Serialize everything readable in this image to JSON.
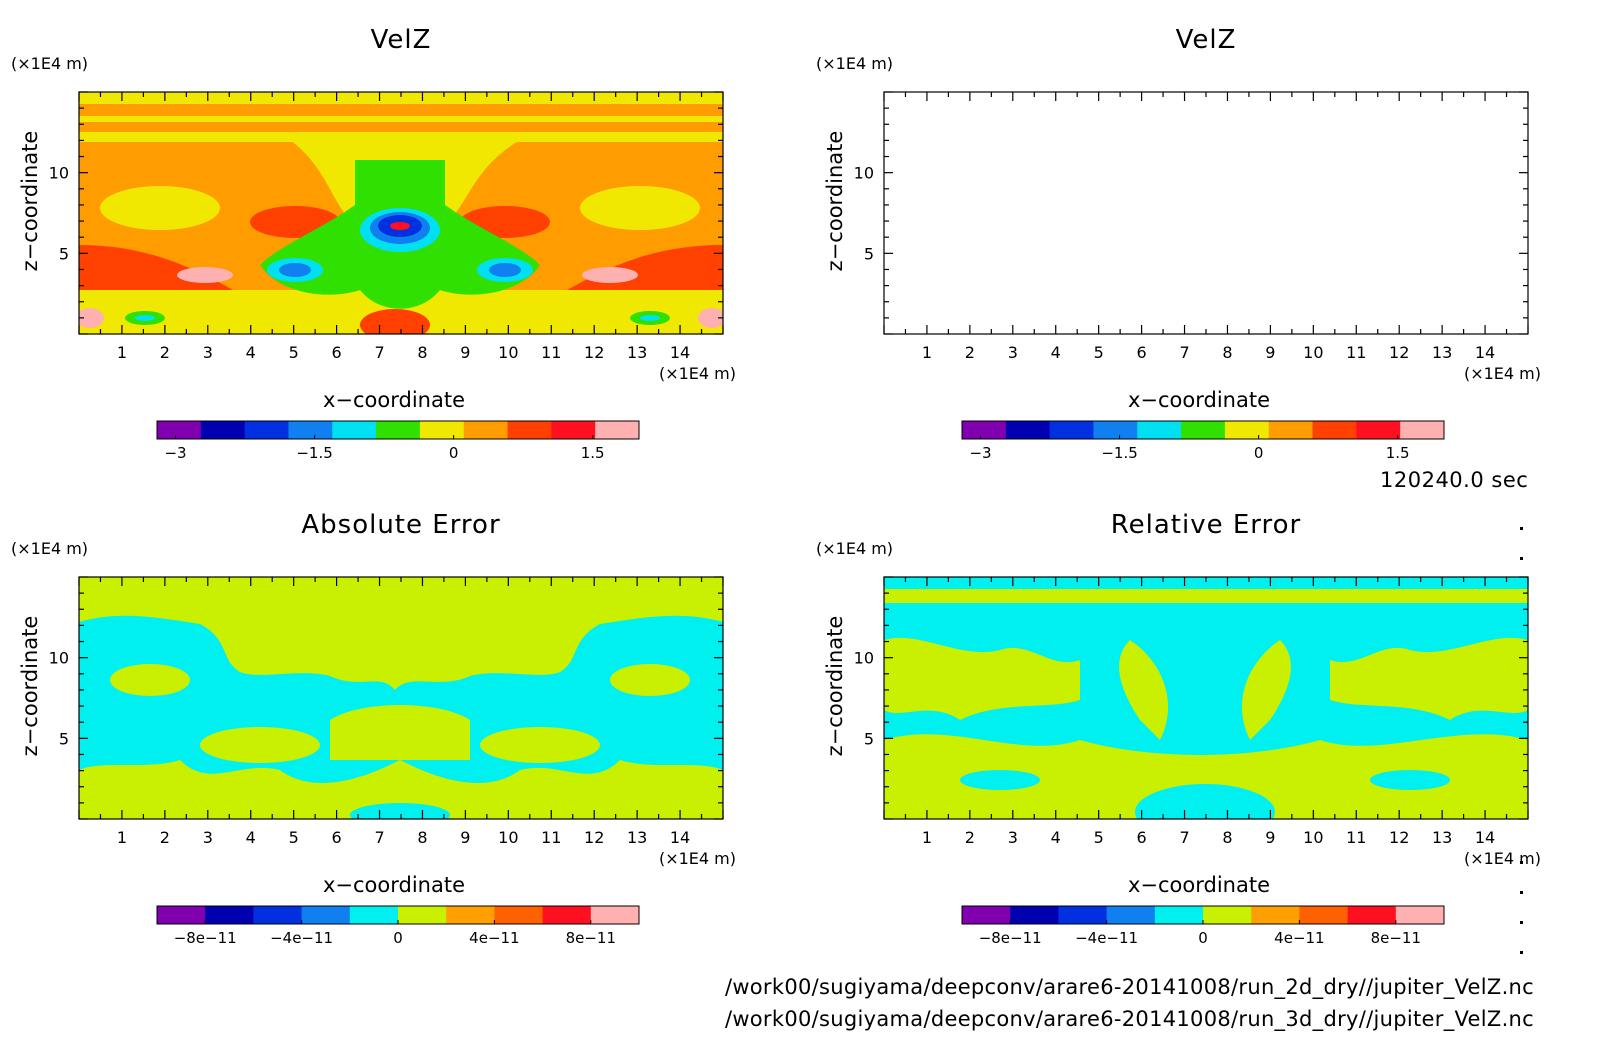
{
  "timestamp": "120240.0 sec",
  "footer": {
    "line1": "/work00/sugiyama/deepconv/arare6-20141008/run_2d_dry//jupiter_VelZ.nc",
    "line2": "/work00/sugiyama/deepconv/arare6-20141008/run_3d_dry//jupiter_VelZ.nc"
  },
  "chart_data": [
    {
      "type": "heatmap",
      "title": "VelZ",
      "xlabel": "x−coordinate",
      "ylabel": "z−coordinate",
      "x_unit": "(×1E4 m)",
      "y_unit": "(×1E4 m)",
      "xlim": [
        0,
        15
      ],
      "ylim": [
        0,
        15
      ],
      "x_ticks": [
        1,
        2,
        3,
        4,
        5,
        6,
        7,
        8,
        9,
        10,
        11,
        12,
        13,
        14
      ],
      "y_ticks": [
        5,
        10
      ],
      "colorbar": {
        "colors": [
          "#8000b0",
          "#0000b0",
          "#0030e0",
          "#1080f0",
          "#00e0f0",
          "#30e000",
          "#f0e800",
          "#ff9c00",
          "#ff4000",
          "#ff1020",
          "#ffb0b0"
        ],
        "tick_values": [
          -3,
          -1.5,
          0,
          1.5
        ],
        "tick_labels": [
          "−3",
          "−1.5",
          "0",
          "1.5"
        ],
        "range": [
          -3.2,
          2.0
        ]
      }
    },
    {
      "type": "heatmap",
      "title": "VelZ",
      "xlabel": "x−coordinate",
      "ylabel": "z−coordinate",
      "x_unit": "(×1E4 m)",
      "y_unit": "(×1E4 m)",
      "xlim": [
        0,
        15
      ],
      "ylim": [
        0,
        15
      ],
      "x_ticks": [
        1,
        2,
        3,
        4,
        5,
        6,
        7,
        8,
        9,
        10,
        11,
        12,
        13,
        14
      ],
      "y_ticks": [
        5,
        10
      ],
      "colorbar": {
        "colors": [
          "#8000b0",
          "#0000b0",
          "#0030e0",
          "#1080f0",
          "#00e0f0",
          "#30e000",
          "#f0e800",
          "#ff9c00",
          "#ff4000",
          "#ff1020",
          "#ffb0b0"
        ],
        "tick_values": [
          -3,
          -1.5,
          0,
          1.5
        ],
        "tick_labels": [
          "−3",
          "−1.5",
          "0",
          "1.5"
        ],
        "range": [
          -3.2,
          2.0
        ]
      }
    },
    {
      "type": "heatmap",
      "title": "Absolute Error",
      "xlabel": "x−coordinate",
      "ylabel": "z−coordinate",
      "x_unit": "(×1E4 m)",
      "y_unit": "(×1E4 m)",
      "xlim": [
        0,
        15
      ],
      "ylim": [
        0,
        15
      ],
      "x_ticks": [
        1,
        2,
        3,
        4,
        5,
        6,
        7,
        8,
        9,
        10,
        11,
        12,
        13,
        14
      ],
      "y_ticks": [
        5,
        10
      ],
      "colorbar": {
        "colors": [
          "#8000b0",
          "#0000b0",
          "#0030e0",
          "#1080f0",
          "#00f0f0",
          "#c8f000",
          "#ffa000",
          "#ff6000",
          "#ff1020",
          "#ffb0b0"
        ],
        "tick_values": [
          -8e-11,
          -4e-11,
          0,
          4e-11,
          8e-11
        ],
        "tick_labels": [
          "−8e−11",
          "−4e−11",
          "0",
          "4e−11",
          "8e−11"
        ],
        "range": [
          -1e-10,
          1e-10
        ]
      }
    },
    {
      "type": "heatmap",
      "title": "Relative Error",
      "xlabel": "x−coordinate",
      "ylabel": "z−coordinate",
      "x_unit": "(×1E4 m)",
      "y_unit": "(×1E4 m)",
      "xlim": [
        0,
        15
      ],
      "ylim": [
        0,
        15
      ],
      "x_ticks": [
        1,
        2,
        3,
        4,
        5,
        6,
        7,
        8,
        9,
        10,
        11,
        12,
        13,
        14
      ],
      "y_ticks": [
        5,
        10
      ],
      "colorbar": {
        "colors": [
          "#8000b0",
          "#0000b0",
          "#0030e0",
          "#1080f0",
          "#00f0f0",
          "#c8f000",
          "#ffa000",
          "#ff6000",
          "#ff1020",
          "#ffb0b0"
        ],
        "tick_values": [
          -8e-11,
          -4e-11,
          0,
          4e-11,
          8e-11
        ],
        "tick_labels": [
          "−8e−11",
          "−4e−11",
          "0",
          "4e−11",
          "8e−11"
        ],
        "range": [
          -1e-10,
          1e-10
        ]
      }
    }
  ]
}
